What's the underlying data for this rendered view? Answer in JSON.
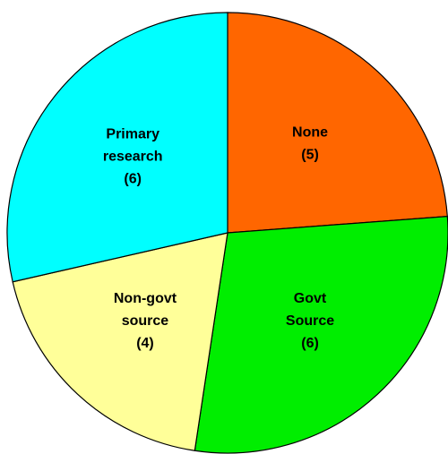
{
  "chart_data": {
    "type": "pie",
    "categories": [
      "None",
      "Govt Source",
      "Non-govt source",
      "Primary research"
    ],
    "values": [
      5,
      6,
      4,
      6
    ],
    "value_labels": [
      "(5)",
      "(6)",
      "(4)",
      "(6)"
    ],
    "colors": [
      "#ff6600",
      "#00ee00",
      "#ffff99",
      "#00ffff"
    ]
  }
}
